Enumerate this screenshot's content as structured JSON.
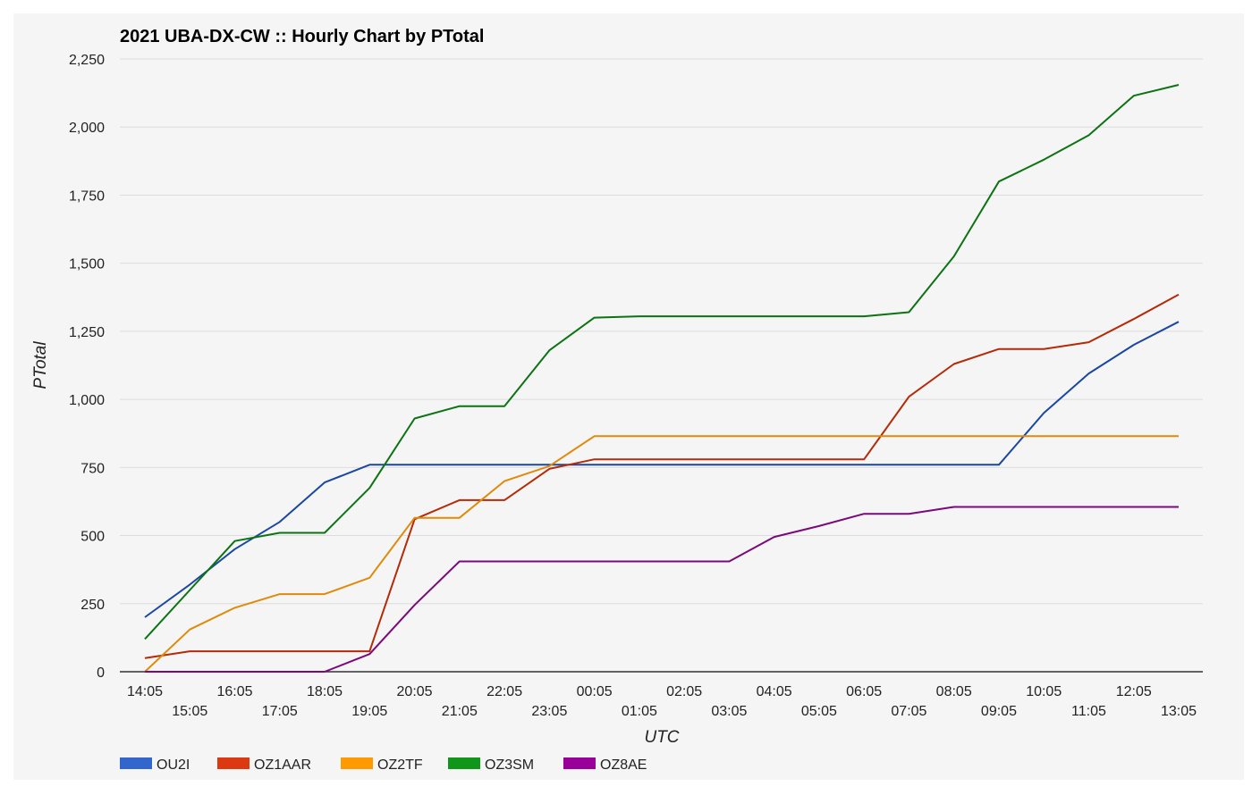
{
  "chart_data": {
    "type": "line",
    "title": "2021 UBA-DX-CW :: Hourly Chart by PTotal",
    "xlabel": "UTC",
    "ylabel": "PTotal",
    "ylim": [
      0,
      2250
    ],
    "yticks": [
      0,
      250,
      500,
      750,
      1000,
      1250,
      1500,
      1750,
      2000,
      2250
    ],
    "ytick_labels": [
      "0",
      "250",
      "500",
      "750",
      "1,000",
      "1,250",
      "1,500",
      "1,750",
      "2,000",
      "2,250"
    ],
    "grid": true,
    "legend_position": "bottom",
    "categories": [
      "14:05",
      "15:05",
      "16:05",
      "17:05",
      "18:05",
      "19:05",
      "20:05",
      "21:05",
      "22:05",
      "23:05",
      "00:05",
      "01:05",
      "02:05",
      "03:05",
      "04:05",
      "05:05",
      "06:05",
      "07:05",
      "08:05",
      "09:05",
      "10:05",
      "11:05",
      "12:05",
      "13:05"
    ],
    "series": [
      {
        "name": "OU2I",
        "color": "#3366cc",
        "line_color": "#1a47a3",
        "values": [
          200,
          320,
          450,
          550,
          695,
          760,
          760,
          760,
          760,
          760,
          760,
          760,
          760,
          760,
          760,
          760,
          760,
          760,
          760,
          760,
          950,
          1095,
          1200,
          1285
        ]
      },
      {
        "name": "OZ1AAR",
        "color": "#dc3912",
        "line_color": "#b52a08",
        "values": [
          50,
          75,
          75,
          75,
          75,
          75,
          560,
          630,
          630,
          745,
          780,
          780,
          780,
          780,
          780,
          780,
          780,
          1010,
          1130,
          1185,
          1185,
          1210,
          1295,
          1385
        ]
      },
      {
        "name": "OZ2TF",
        "color": "#ff9900",
        "line_color": "#e08a0a",
        "values": [
          0,
          155,
          235,
          285,
          285,
          345,
          565,
          565,
          700,
          755,
          865,
          865,
          865,
          865,
          865,
          865,
          865,
          865,
          865,
          865,
          865,
          865,
          865,
          865
        ]
      },
      {
        "name": "OZ3SM",
        "color": "#109618",
        "line_color": "#0c7312",
        "values": [
          120,
          300,
          480,
          510,
          510,
          675,
          930,
          975,
          975,
          1180,
          1300,
          1305,
          1305,
          1305,
          1305,
          1305,
          1305,
          1320,
          1525,
          1800,
          1880,
          1970,
          2115,
          2155
        ]
      },
      {
        "name": "OZ8AE",
        "color": "#990099",
        "line_color": "#7a0a7a",
        "values": [
          0,
          0,
          0,
          0,
          0,
          65,
          245,
          405,
          405,
          405,
          405,
          405,
          405,
          405,
          495,
          535,
          580,
          580,
          605,
          605,
          605,
          605,
          605,
          605
        ]
      }
    ]
  }
}
